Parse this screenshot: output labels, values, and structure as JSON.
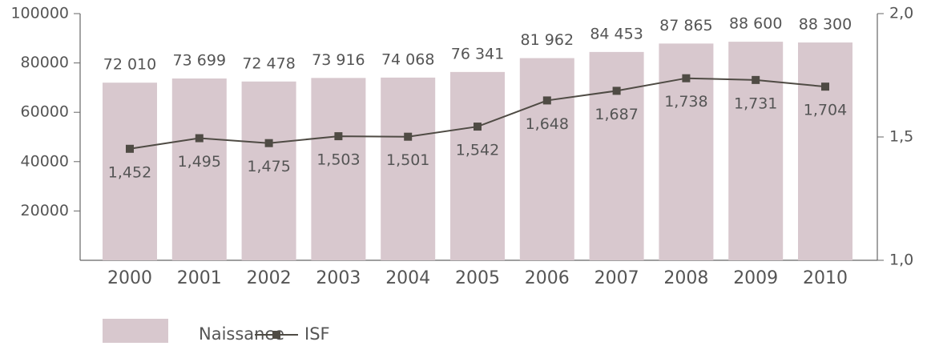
{
  "chart_data": {
    "type": "bar-line",
    "categories": [
      "2000",
      "2001",
      "2002",
      "2003",
      "2004",
      "2005",
      "2006",
      "2007",
      "2008",
      "2009",
      "2010"
    ],
    "series": [
      {
        "name": "Naissance",
        "type": "bar",
        "color": "#d8c8ce",
        "values": [
          72010,
          73699,
          72478,
          73916,
          74068,
          76341,
          81962,
          84453,
          87865,
          88600,
          88300
        ],
        "value_labels": [
          "72 010",
          "73 699",
          "72 478",
          "73 916",
          "74 068",
          "76 341",
          "81 962",
          "84 453",
          "87 865",
          "88 600",
          "88 300"
        ]
      },
      {
        "name": "ISF",
        "type": "line",
        "axis": "y2",
        "color": "#4f4b44",
        "values": [
          1.452,
          1.495,
          1.475,
          1.503,
          1.501,
          1.542,
          1.648,
          1.687,
          1.738,
          1.731,
          1.704
        ],
        "value_labels": [
          "1,452",
          "1,495",
          "1,475",
          "1,503",
          "1,501",
          "1,542",
          "1,648",
          "1,687",
          "1,738",
          "1,731",
          "1,704"
        ]
      }
    ],
    "ylim": [
      0,
      100000
    ],
    "yticks": [
      20000,
      40000,
      60000,
      80000,
      100000
    ],
    "y2lim": [
      1,
      2
    ],
    "y2ticks": [
      {
        "value": 1,
        "label": "1,0"
      },
      {
        "value": 1.5,
        "label": "1,5"
      },
      {
        "value": 2,
        "label": "2,0"
      }
    ],
    "legend": "bottom-left"
  }
}
